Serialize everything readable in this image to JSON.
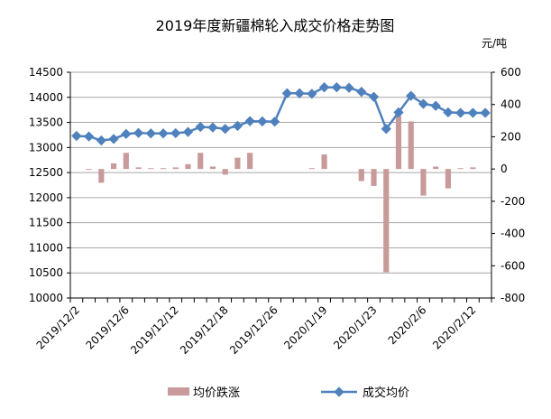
{
  "chart_data": {
    "type": "bar+line",
    "title": "2019年度新疆棉轮入成交价格走势图",
    "right_unit": "元/吨",
    "x_tick_labels": [
      {
        "index": 0,
        "label": "2019/12/2"
      },
      {
        "index": 4,
        "label": "2019/12/6"
      },
      {
        "index": 8,
        "label": "2019/12/12"
      },
      {
        "index": 12,
        "label": "2019/12/18"
      },
      {
        "index": 16,
        "label": "2019/12/26"
      },
      {
        "index": 20,
        "label": "2020/1/19"
      },
      {
        "index": 24,
        "label": "2020/1/23"
      },
      {
        "index": 28,
        "label": "2020/2/6"
      },
      {
        "index": 32,
        "label": "2020/2/12"
      }
    ],
    "n_points": 34,
    "left_axis": {
      "min": 10000,
      "max": 14500,
      "step": 500,
      "ticks": [
        "10000",
        "10500",
        "11000",
        "11500",
        "12000",
        "12500",
        "13000",
        "13500",
        "14000",
        "14500"
      ]
    },
    "right_axis": {
      "min": -800,
      "max": 600,
      "step": 200,
      "ticks": [
        "-800",
        "-600",
        "-400",
        "-200",
        "0",
        "200",
        "400",
        "600"
      ]
    },
    "series": [
      {
        "name": "均价跌涨",
        "type": "bar",
        "axis": "right",
        "color": "#c89a9a",
        "values": [
          0,
          -5,
          -85,
          35,
          100,
          10,
          5,
          5,
          10,
          30,
          100,
          15,
          -35,
          70,
          100,
          0,
          0,
          0,
          0,
          5,
          90,
          0,
          0,
          -75,
          -105,
          -640,
          330,
          295,
          -165,
          15,
          -120,
          5,
          10,
          0
        ]
      },
      {
        "name": "成交均价",
        "type": "line",
        "axis": "left",
        "color": "#4f81bd",
        "values": [
          13230,
          13220,
          13140,
          13170,
          13270,
          13290,
          13280,
          13280,
          13285,
          13310,
          13410,
          13400,
          13370,
          13430,
          13525,
          13520,
          13515,
          14080,
          14080,
          14070,
          14200,
          14200,
          14190,
          14110,
          14010,
          13370,
          13700,
          14030,
          13870,
          13830,
          13700,
          13690,
          13690,
          13690
        ]
      }
    ],
    "grid": "horizontal",
    "legend_position": "bottom"
  }
}
